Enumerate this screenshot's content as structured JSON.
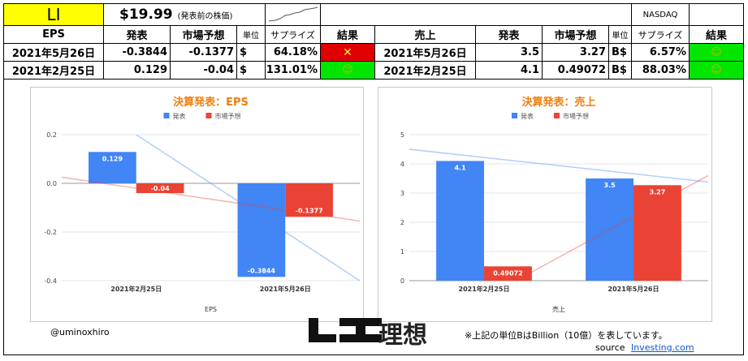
{
  "header": {
    "ticker": "LI",
    "price": "$19.99",
    "price_note": "(発表前の株価)",
    "exchange": "NASDAQ"
  },
  "table": {
    "eps_columns": [
      "EPS",
      "発表",
      "市場予想",
      "単位",
      "サプライズ",
      "結果"
    ],
    "sales_columns": [
      "売上",
      "発表",
      "市場予想",
      "単位",
      "サプライズ",
      "結果"
    ],
    "eps_rows": [
      {
        "date": "2021年5月26日",
        "actual": "-0.3844",
        "forecast": "-0.1377",
        "unit": "$",
        "surprise": "64.18%",
        "result": "✕",
        "result_color": "#e00000"
      },
      {
        "date": "2021年2月25日",
        "actual": "0.129",
        "forecast": "-0.04",
        "unit": "$",
        "surprise": "131.01%",
        "result": "☺",
        "result_color": "#00e600"
      }
    ],
    "sales_rows": [
      {
        "date": "2021年5月26日",
        "actual": "3.5",
        "forecast": "3.27",
        "unit": "B$",
        "surprise": "6.57%",
        "result": "☺",
        "result_color": "#00e600"
      },
      {
        "date": "2021年2月25日",
        "actual": "4.1",
        "forecast": "0.49072",
        "unit": "B$",
        "surprise": "88.03%",
        "result": "☺",
        "result_color": "#00e600"
      }
    ]
  },
  "colors": {
    "actual": "#4285f4",
    "forecast": "#ea4335",
    "title": "#f07f0e",
    "fail": "#e00000",
    "pass": "#00e600",
    "ticker_bg": "#ffff00"
  },
  "chart_data": [
    {
      "type": "bar",
      "title": "決算発表：EPS",
      "xlabel": "EPS",
      "categories": [
        "2021年2月25日",
        "2021年5月26日"
      ],
      "series": [
        {
          "name": "発表",
          "values": [
            0.129,
            -0.3844
          ]
        },
        {
          "name": "市場予想",
          "values": [
            -0.04,
            -0.1377
          ]
        }
      ],
      "value_labels": [
        [
          "0.129",
          "-0.3844"
        ],
        [
          "-0.04",
          "-0.1377"
        ]
      ],
      "ylim": [
        -0.4,
        0.2
      ],
      "yticks": [
        "0.2",
        "0.0",
        "-0.2",
        "-0.4"
      ],
      "ytick_values": [
        0.2,
        0.0,
        -0.2,
        -0.4
      ],
      "trendlines": [
        {
          "series": "発表",
          "from": [
            0.0,
            0.2
          ],
          "to": [
            1.5,
            -0.4
          ]
        },
        {
          "series": "市場予想",
          "from": [
            -0.5,
            0.025
          ],
          "to": [
            2.0,
            -0.2
          ]
        }
      ],
      "legend": "top",
      "grid": true
    },
    {
      "type": "bar",
      "title": "決算発表：売上",
      "xlabel": "売上",
      "categories": [
        "2021年2月25日",
        "2021年5月26日"
      ],
      "series": [
        {
          "name": "発表",
          "values": [
            4.1,
            3.5
          ]
        },
        {
          "name": "市場予想",
          "values": [
            0.49072,
            3.27
          ]
        }
      ],
      "value_labels": [
        [
          "4.1",
          "3.5"
        ],
        [
          "0.49072",
          "3.27"
        ]
      ],
      "ylim": [
        0,
        5
      ],
      "yticks": [
        "5",
        "4",
        "3",
        "2",
        "1",
        "0"
      ],
      "ytick_values": [
        5,
        4,
        3,
        2,
        1,
        0
      ],
      "trendlines": [
        {
          "series": "発表",
          "from": [
            -0.5,
            4.5
          ],
          "to": [
            2.0,
            3.1
          ]
        },
        {
          "series": "市場予想",
          "from": [
            -0.5,
            -2.0
          ],
          "to": [
            2.0,
            5.0
          ]
        }
      ],
      "legend": "top",
      "grid": true
    }
  ],
  "footer": {
    "handle": "@uminoxhiro",
    "company": "理想",
    "note": "※上記の単位BはBillion（10億）を表しています。",
    "source_label": "source",
    "source_link": "Investing.com"
  }
}
